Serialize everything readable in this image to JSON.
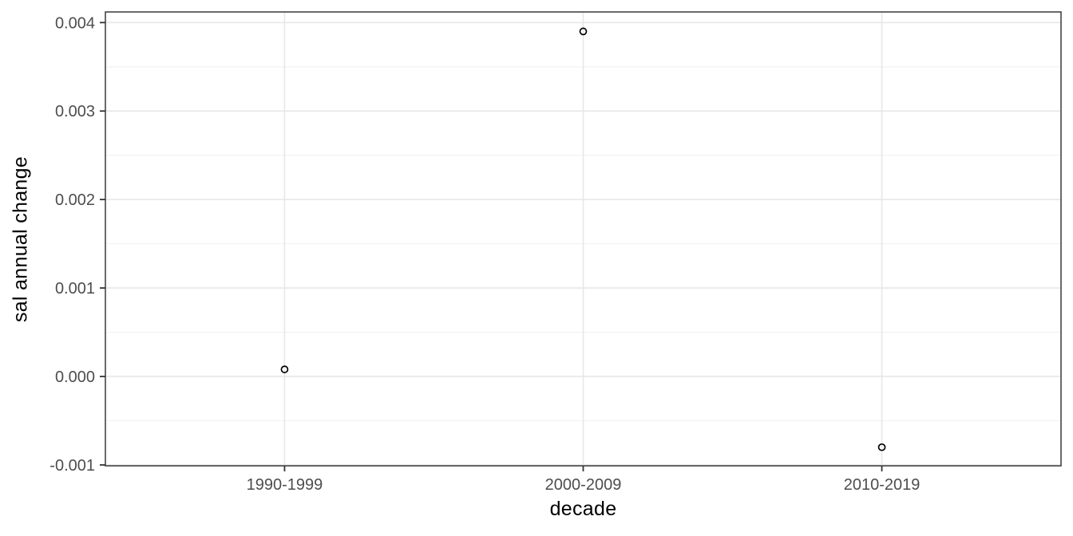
{
  "chart_data": {
    "type": "scatter",
    "title": "",
    "xlabel": "decade",
    "ylabel": "sal annual change",
    "categories": [
      "1990-1999",
      "2000-2009",
      "2010-2019"
    ],
    "series": [
      {
        "name": "sal annual change",
        "values": [
          8e-05,
          0.0039,
          -0.0008
        ]
      }
    ],
    "y_ticks": {
      "values": [
        -0.001,
        0.0,
        0.001,
        0.002,
        0.003,
        0.004
      ],
      "labels": [
        "-0.001",
        "0.000",
        "0.001",
        "0.002",
        "0.003",
        "0.004"
      ]
    },
    "ylim": [
      -0.00101,
      0.00412
    ],
    "grid": "horizontal major+minor, vertical major at categories",
    "legend_position": "none",
    "point_style": "open-circle"
  },
  "style": {
    "background": "#ffffff",
    "panel_background": "#ffffff",
    "panel_border": "#383838",
    "grid_major": "#e7e7e7",
    "grid_minor": "#f1f1f1",
    "tick_mark": "#333333",
    "tick_label_color": "#4d4d4d",
    "axis_title_color": "#000000",
    "point_color": "#000000"
  }
}
